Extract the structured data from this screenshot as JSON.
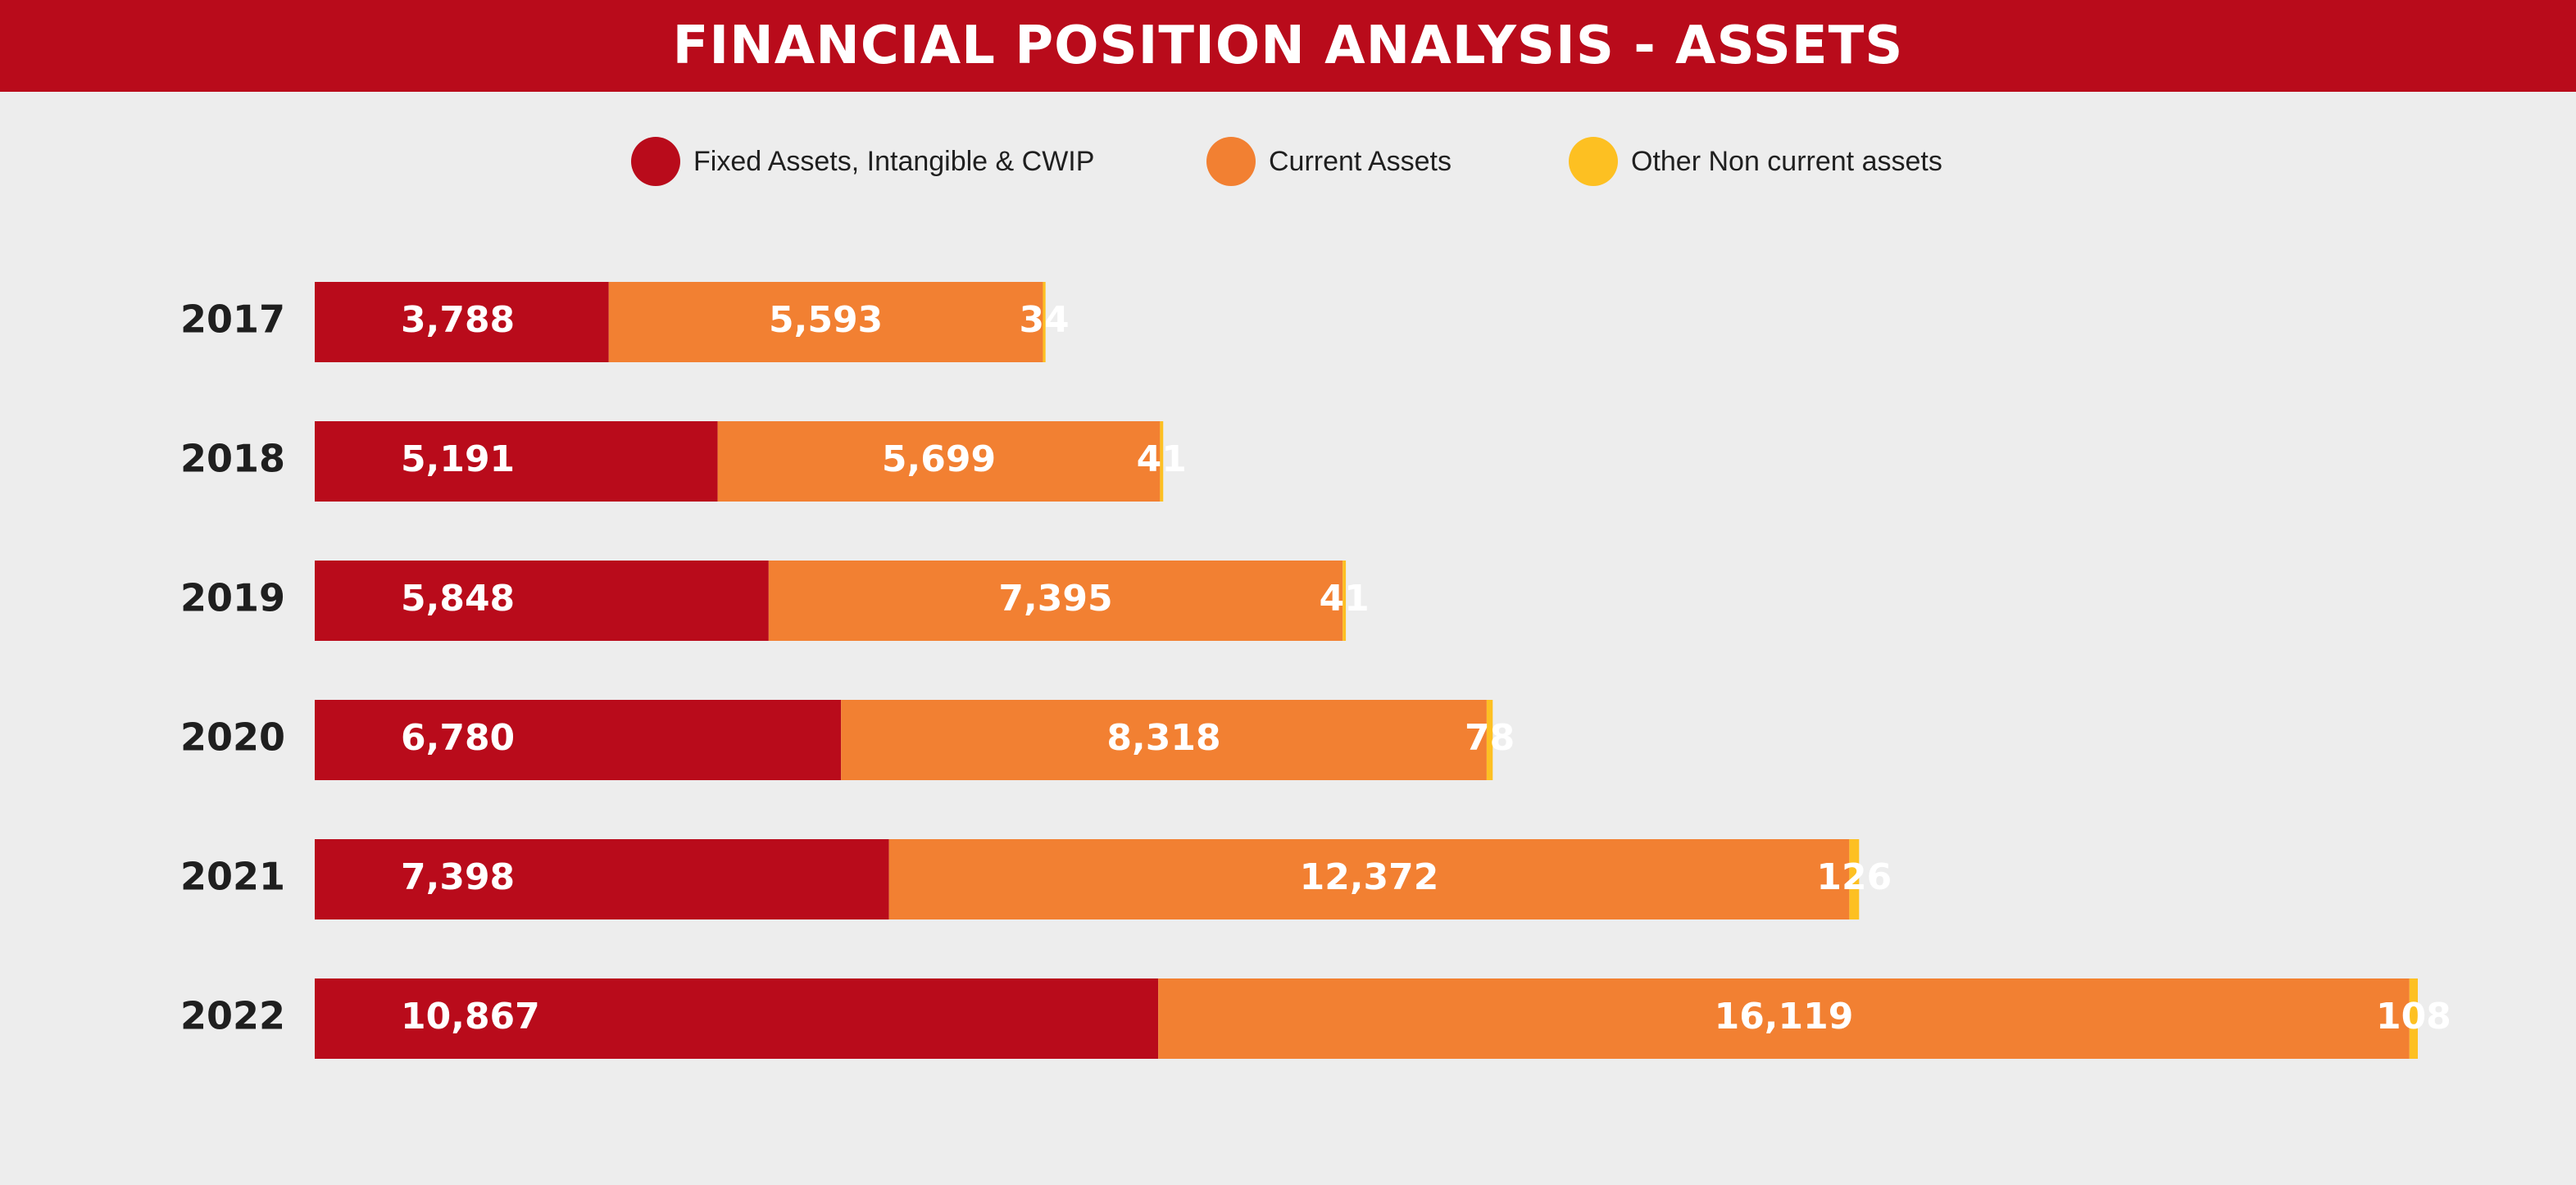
{
  "title": "FINANCIAL POSITION ANALYSIS - ASSETS",
  "chart_data": {
    "type": "bar",
    "orientation": "horizontal",
    "stacked": true,
    "title": "FINANCIAL POSITION ANALYSIS - ASSETS",
    "xlabel": "",
    "ylabel": "",
    "grid": false,
    "legend_placement": "top",
    "categories": [
      "2017",
      "2018",
      "2019",
      "2020",
      "2021",
      "2022"
    ],
    "series": [
      {
        "name": "Fixed Assets, Intangible & CWIP",
        "color": "#b90b1b",
        "values": [
          3788,
          5191,
          5848,
          6780,
          7398,
          10867
        ],
        "labels": [
          "3,788",
          "5,191",
          "5,848",
          "6,780",
          "7,398",
          "10,867"
        ]
      },
      {
        "name": "Current Assets",
        "color": "#f28032",
        "values": [
          5593,
          5699,
          7395,
          8318,
          12372,
          16119
        ],
        "labels": [
          "5,593",
          "5,699",
          "7,395",
          "8,318",
          "12,372",
          "16,119"
        ]
      },
      {
        "name": "Other Non current assets",
        "color": "#fdc022",
        "values": [
          34,
          41,
          41,
          78,
          126,
          108
        ],
        "labels": [
          "34",
          "41",
          "41",
          "78",
          "126",
          "108"
        ]
      }
    ],
    "xlim": [
      0,
      27094
    ]
  },
  "colors": {
    "header_background": "#b90b1b",
    "page_background": "#ededed",
    "label_text": "#ffffff",
    "axis_text": "#1f1f1f"
  }
}
